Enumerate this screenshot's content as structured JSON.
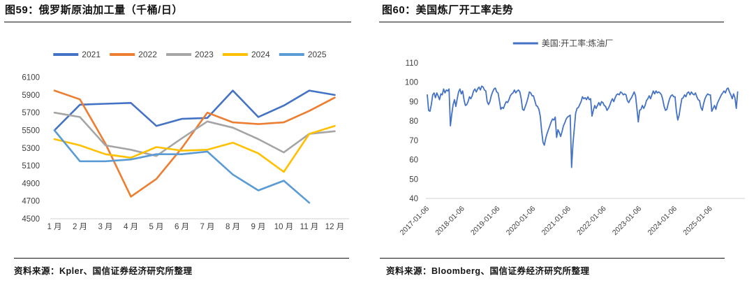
{
  "panels": {
    "left": {
      "title": "图59：俄罗斯原油加工量（千桶/日）",
      "source": "资料来源：Kpler、国信证券经济研究所整理"
    },
    "right": {
      "title": "图60：美国炼厂开工率走势",
      "source": "资料来源：Bloomberg、国信证券经济研究所整理"
    }
  },
  "colors": {
    "blue_2021": "#4472C4",
    "orange_2022": "#ED7D31",
    "gray_2023": "#A5A5A5",
    "yellow_2024": "#FFC000",
    "lightblue_2025": "#5B9BD5",
    "axis_line": "#D9D9D9",
    "axis_label": "#3F3F3F",
    "legend_label": "#404040"
  },
  "chart_data": [
    {
      "type": "line",
      "title": "俄罗斯原油加工量（千桶/日）",
      "categories": [
        "1 月",
        "2 月",
        "3 月",
        "4 月",
        "5 月",
        "6 月",
        "7 月",
        "8 月",
        "9 月",
        "10 月",
        "11 月",
        "12 月"
      ],
      "ylim": [
        4500,
        6100
      ],
      "ytick_step": 200,
      "grid": false,
      "legend_position": "top",
      "series": [
        {
          "name": "2021",
          "color": "#4472C4",
          "values": [
            5500,
            5790,
            5800,
            5810,
            5550,
            5630,
            5640,
            5950,
            5650,
            5780,
            5950,
            5900
          ]
        },
        {
          "name": "2022",
          "color": "#ED7D31",
          "values": [
            5950,
            5850,
            5350,
            4750,
            4950,
            5300,
            5700,
            5590,
            5570,
            5590,
            5720,
            5870
          ]
        },
        {
          "name": "2023",
          "color": "#A5A5A5",
          "values": [
            5700,
            5650,
            5330,
            5280,
            5210,
            5410,
            5600,
            5530,
            5400,
            5250,
            5460,
            5490
          ]
        },
        {
          "name": "2024",
          "color": "#FFC000",
          "values": [
            5400,
            5330,
            5230,
            5190,
            5310,
            5270,
            5280,
            5360,
            5240,
            5030,
            5460,
            5550
          ]
        },
        {
          "name": "2025",
          "color": "#5B9BD5",
          "values": [
            5500,
            5150,
            5150,
            5170,
            5230,
            5230,
            5260,
            5000,
            4820,
            4930,
            4680
          ]
        }
      ]
    },
    {
      "type": "line",
      "title": "美国炼厂开工率走势",
      "ylim": [
        40,
        110
      ],
      "ytick_step": 10,
      "grid": false,
      "legend_position": "top",
      "xtick_labels": [
        "2017-01-06",
        "2018-01-06",
        "2019-01-06",
        "2020-01-06",
        "2021-01-06",
        "2022-01-06",
        "2023-01-06",
        "2024-01-06",
        "2025-01-06"
      ],
      "x_start": "2017-01-06",
      "points_per_year": 26,
      "series": [
        {
          "name": "美国:开工率:炼油厂",
          "color": "#4472C4",
          "values": [
            93.5,
            85.5,
            85.0,
            88.5,
            93.5,
            94.5,
            92.0,
            94.5,
            93.0,
            91.0,
            94.0,
            93.5,
            96.5,
            94.5,
            96.0,
            95.5,
            96.5,
            77.5,
            83.5,
            88.5,
            91.0,
            87.5,
            91.5,
            95.0,
            96.5,
            94.0,
            95.5,
            91.0,
            88.0,
            88.5,
            90.0,
            92.5,
            91.5,
            93.0,
            95.5,
            96.5,
            95.0,
            96.5,
            97.5,
            96.0,
            98.0,
            97.5,
            96.0,
            95.5,
            90.0,
            88.5,
            90.0,
            93.0,
            95.0,
            96.5,
            97.0,
            95.0,
            94.5,
            90.5,
            86.0,
            87.0,
            86.5,
            88.5,
            90.0,
            89.5,
            91.0,
            93.0,
            94.0,
            94.5,
            96.0,
            94.5,
            95.5,
            96.0,
            95.0,
            91.5,
            86.0,
            85.5,
            87.5,
            89.5,
            92.0,
            95.0,
            94.5,
            93.0,
            93.0,
            90.5,
            88.0,
            87.5,
            86.0,
            82.5,
            75.0,
            69.0,
            67.5,
            71.0,
            73.5,
            75.5,
            77.5,
            79.5,
            81.0,
            80.5,
            82.0,
            71.5,
            75.5,
            74.0,
            72.0,
            74.5,
            77.5,
            79.0,
            81.0,
            82.0,
            82.5,
            83.0,
            56.0,
            68.0,
            76.0,
            84.0,
            86.5,
            87.0,
            88.5,
            90.0,
            92.5,
            91.5,
            92.0,
            91.0,
            92.5,
            91.0,
            91.5,
            82.5,
            85.5,
            88.0,
            86.5,
            88.0,
            89.5,
            88.0,
            90.0,
            89.5,
            88.0,
            87.5,
            85.5,
            86.5,
            88.0,
            90.0,
            91.5,
            90.0,
            92.0,
            93.5,
            94.0,
            93.5,
            95.0,
            94.5,
            93.5,
            94.0,
            93.5,
            90.5,
            89.5,
            91.0,
            92.0,
            93.5,
            95.0,
            93.0,
            86.5,
            79.5,
            85.5,
            86.0,
            88.0,
            86.5,
            88.0,
            90.5,
            91.5,
            93.0,
            91.5,
            93.5,
            95.5,
            94.0,
            95.5,
            94.5,
            95.0,
            94.5,
            93.5,
            91.0,
            87.5,
            85.5,
            86.0,
            89.0,
            91.5,
            93.0,
            93.5,
            92.5,
            92.5,
            85.0,
            80.5,
            83.0,
            87.5,
            91.5,
            92.0,
            93.5,
            92.5,
            94.5,
            95.0,
            93.5,
            95.0,
            94.0,
            93.5,
            94.5,
            92.5,
            91.0,
            90.5,
            87.0,
            85.5,
            89.0,
            91.5,
            93.0,
            94.0,
            93.5,
            93.5,
            85.0,
            86.5,
            88.0,
            86.0,
            89.0,
            90.5,
            92.0,
            93.5,
            94.5,
            95.5,
            94.5,
            96.5,
            97.0,
            95.0,
            93.5,
            91.5,
            94.0,
            92.0,
            86.5,
            95.0
          ]
        }
      ]
    }
  ]
}
